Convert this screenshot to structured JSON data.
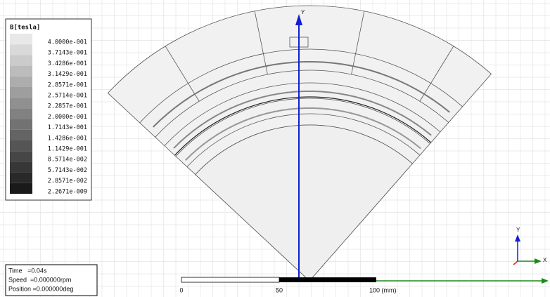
{
  "legend": {
    "title": "B[tesla]",
    "values": [
      "4.0000e-001",
      "3.7143e-001",
      "3.4286e-001",
      "3.1429e-001",
      "2.8571e-001",
      "2.5714e-001",
      "2.2857e-001",
      "2.0000e-001",
      "1.7143e-001",
      "1.4286e-001",
      "1.1429e-001",
      "8.5714e-002",
      "5.7143e-002",
      "2.8571e-002",
      "2.2671e-009"
    ]
  },
  "status": {
    "time": "Time   =0.04s",
    "speed": "Speed  =0.000000rpm",
    "position": "Position =0.000000deg"
  },
  "axes": {
    "main_y": "Y",
    "triad_y": "Y",
    "triad_x": "X"
  },
  "scale": {
    "labels": [
      "0",
      "50",
      "100 (mm)"
    ]
  }
}
